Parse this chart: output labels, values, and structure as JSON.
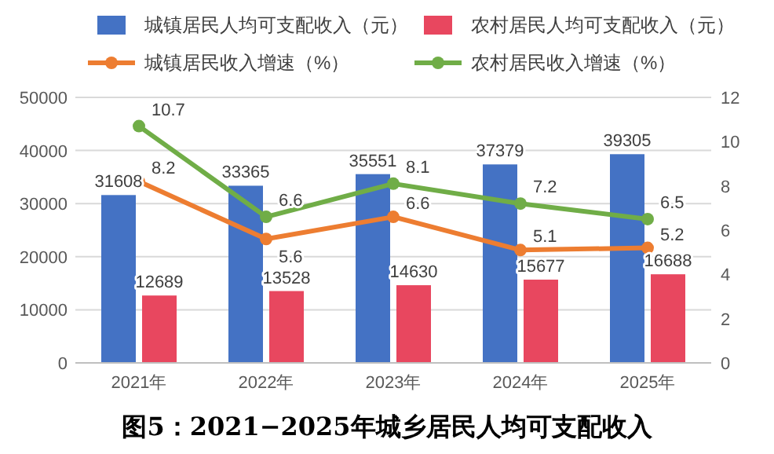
{
  "chart_data": {
    "type": "bar",
    "title": "图5：2021−2025年城乡居民人均可支配收入",
    "categories": [
      "2021年",
      "2022年",
      "2023年",
      "2024年",
      "2025年"
    ],
    "series": [
      {
        "name": "城镇居民人均可支配收入（元）",
        "color": "#4472c4",
        "values": [
          31608,
          33365,
          35551,
          37379,
          39305
        ]
      },
      {
        "name": "农村居民人均可支配收入（元）",
        "color": "#e8475f",
        "values": [
          12689,
          13528,
          14630,
          15677,
          16688
        ]
      },
      {
        "name": "城镇居民收入增速（%）",
        "type": "line",
        "axis": "y2",
        "color": "#ed7d31",
        "values": [
          8.2,
          5.6,
          6.6,
          5.1,
          5.2
        ]
      },
      {
        "name": "农村居民收入增速（%）",
        "type": "line",
        "axis": "y2",
        "color": "#70ad47",
        "values": [
          10.7,
          6.6,
          8.1,
          7.2,
          6.5
        ]
      }
    ],
    "ylim": [
      0,
      50000
    ],
    "yticks": [
      0,
      10000,
      20000,
      30000,
      40000,
      50000
    ],
    "y2lim": [
      0,
      12
    ],
    "y2ticks": [
      0,
      2,
      4,
      6,
      8,
      10,
      12
    ],
    "grid": "y",
    "legend": "top",
    "marker": "circle",
    "data_labels": true
  }
}
